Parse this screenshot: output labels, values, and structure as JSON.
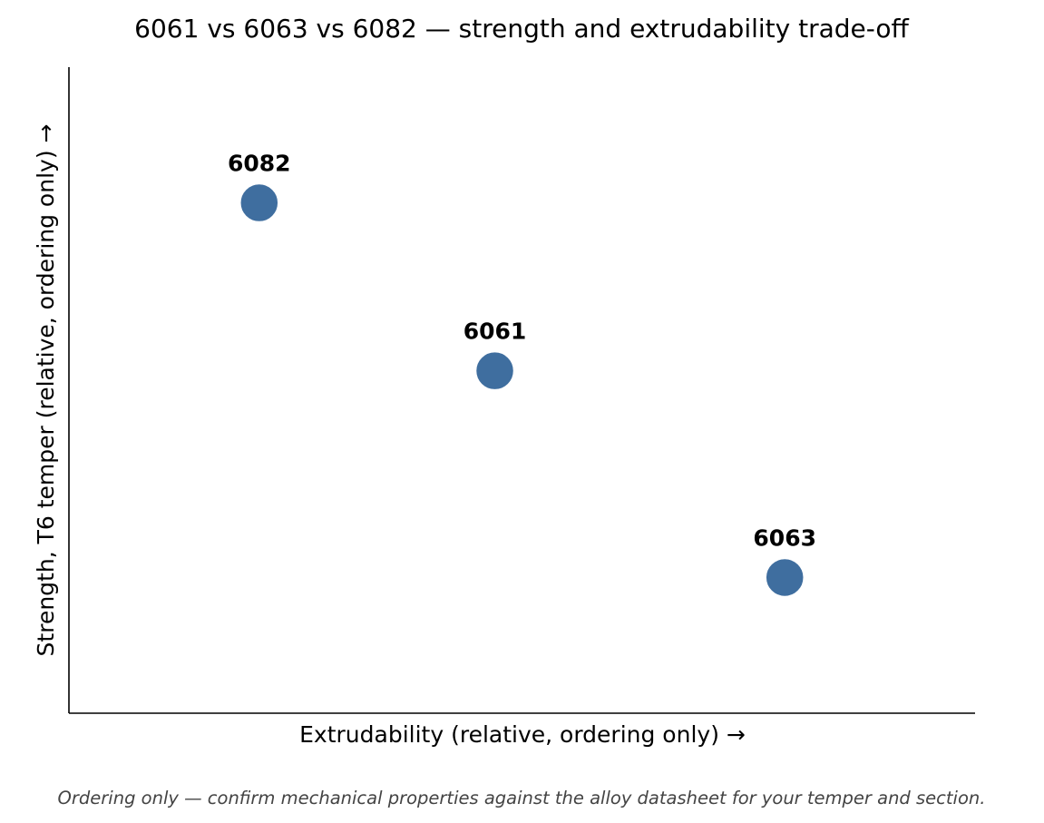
{
  "chart_data": {
    "type": "scatter",
    "title": "6061 vs 6063 vs 6082 — strength and extrudability trade-off",
    "xlabel": "Extrudability (relative, ordering only) →",
    "ylabel": "Strength, T6 temper (relative, ordering only) →",
    "xlim": [
      0,
      1
    ],
    "ylim": [
      0,
      1
    ],
    "grid": false,
    "points": [
      {
        "label": "6082",
        "x": 0.21,
        "y": 0.79
      },
      {
        "label": "6061",
        "x": 0.47,
        "y": 0.53
      },
      {
        "label": "6063",
        "x": 0.79,
        "y": 0.21
      }
    ],
    "marker_color": "#3f6e9f",
    "annotations": [
      "Ordering only — confirm mechanical properties against the alloy datasheet for your temper and section."
    ]
  }
}
